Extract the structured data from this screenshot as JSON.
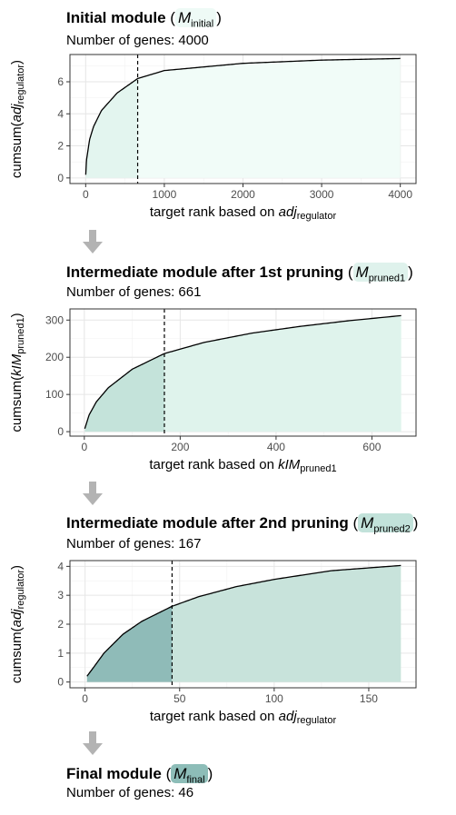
{
  "colors": {
    "arrow": "#b3b3b3",
    "grid_major": "#e6e6e6",
    "grid_minor": "#f2f2f2",
    "panel_border": "#333333",
    "curve": "#000000"
  },
  "blocks": [
    {
      "title": "Initial module",
      "symbol_base": "M",
      "symbol_sub": "initial",
      "pill_color": "#eefaf6",
      "genes_label": "Number of genes: 4000"
    },
    {
      "title": "Intermediate module after 1st pruning",
      "symbol_base": "M",
      "symbol_sub": "pruned1",
      "pill_color": "#dff2ec",
      "genes_label": "Number of genes: 661"
    },
    {
      "title": "Intermediate module after 2nd pruning",
      "symbol_base": "M",
      "symbol_sub": "pruned2",
      "pill_color": "#c2e2da",
      "genes_label": "Number of genes: 167"
    },
    {
      "title": "Final module",
      "symbol_base": "M",
      "symbol_sub": "final",
      "pill_color": "#8dbdb8",
      "genes_label": "Number of genes: 46"
    }
  ],
  "chart_data": [
    {
      "type": "area",
      "x_prefix": "target rank based on ",
      "x_symbol": "adj",
      "x_sub": "regulator",
      "y_prefix": "cumsum(",
      "y_symbol": "adj",
      "y_sub": "regulator",
      "y_suffix": ")",
      "xlim": [
        -200,
        4200
      ],
      "ylim": [
        -0.35,
        7.7
      ],
      "x_ticks": [
        0,
        1000,
        2000,
        3000,
        4000
      ],
      "x_tick_labels": [
        "0",
        "1000",
        "2000",
        "3000",
        "4000"
      ],
      "y_ticks": [
        0,
        2,
        4,
        6
      ],
      "y_tick_labels": [
        "0",
        "2",
        "4",
        "6"
      ],
      "grid": true,
      "n_points": 4000,
      "cutoff_x": 661,
      "curve_points": [
        [
          1,
          0.2
        ],
        [
          10,
          1.1
        ],
        [
          50,
          2.4
        ],
        [
          100,
          3.2
        ],
        [
          200,
          4.2
        ],
        [
          400,
          5.3
        ],
        [
          661,
          6.2
        ],
        [
          1000,
          6.7
        ],
        [
          2000,
          7.15
        ],
        [
          3000,
          7.35
        ],
        [
          4000,
          7.45
        ]
      ],
      "fill_selected": "#e3f5ef",
      "fill_rest": "#f1fcf8"
    },
    {
      "type": "area",
      "x_prefix": "target rank based on ",
      "x_symbol": "kIM",
      "x_sub": "pruned1",
      "y_prefix": "cumsum(",
      "y_symbol": "kIM",
      "y_sub": "pruned1",
      "y_suffix": ")",
      "xlim": [
        -30,
        692
      ],
      "ylim": [
        -12,
        330
      ],
      "x_ticks": [
        0,
        200,
        400,
        600
      ],
      "x_tick_labels": [
        "0",
        "200",
        "400",
        "600"
      ],
      "y_ticks": [
        0,
        100,
        200,
        300
      ],
      "y_tick_labels": [
        "0",
        "100",
        "200",
        "300"
      ],
      "grid": true,
      "n_points": 661,
      "cutoff_x": 167,
      "curve_points": [
        [
          1,
          8
        ],
        [
          10,
          45
        ],
        [
          25,
          80
        ],
        [
          50,
          118
        ],
        [
          100,
          168
        ],
        [
          167,
          210
        ],
        [
          250,
          240
        ],
        [
          350,
          265
        ],
        [
          450,
          283
        ],
        [
          550,
          298
        ],
        [
          661,
          312
        ]
      ],
      "fill_selected": "#c4e3da",
      "fill_rest": "#dff3ec"
    },
    {
      "type": "area",
      "x_prefix": "target rank based on ",
      "x_symbol": "adj",
      "x_sub": "regulator",
      "y_prefix": "cumsum(",
      "y_symbol": "adj",
      "y_sub": "regulator",
      "y_suffix": ")",
      "xlim": [
        -8,
        175
      ],
      "ylim": [
        -0.2,
        4.2
      ],
      "x_ticks": [
        0,
        50,
        100,
        150
      ],
      "x_tick_labels": [
        "0",
        "50",
        "100",
        "150"
      ],
      "y_ticks": [
        0,
        1,
        2,
        3,
        4
      ],
      "y_tick_labels": [
        "0",
        "1",
        "2",
        "3",
        "4"
      ],
      "grid": true,
      "n_points": 167,
      "cutoff_x": 46,
      "curve_points": [
        [
          1,
          0.2
        ],
        [
          5,
          0.55
        ],
        [
          10,
          1.0
        ],
        [
          20,
          1.65
        ],
        [
          30,
          2.1
        ],
        [
          46,
          2.62
        ],
        [
          60,
          2.95
        ],
        [
          80,
          3.3
        ],
        [
          100,
          3.55
        ],
        [
          130,
          3.85
        ],
        [
          167,
          4.03
        ]
      ],
      "fill_selected": "#8fbbb8",
      "fill_rest": "#c8e3db"
    }
  ]
}
